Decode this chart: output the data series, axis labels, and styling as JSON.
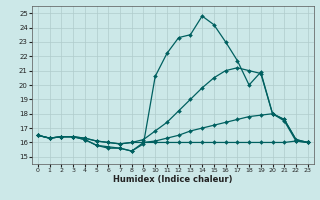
{
  "xlabel": "Humidex (Indice chaleur)",
  "background_color": "#cce8e8",
  "grid_color": "#b0cccc",
  "line_color": "#006060",
  "xlim": [
    -0.5,
    23.5
  ],
  "ylim": [
    14.5,
    25.5
  ],
  "yticks": [
    15,
    16,
    17,
    18,
    19,
    20,
    21,
    22,
    23,
    24,
    25
  ],
  "xticks": [
    0,
    1,
    2,
    3,
    4,
    5,
    6,
    7,
    8,
    9,
    10,
    11,
    12,
    13,
    14,
    15,
    16,
    17,
    18,
    19,
    20,
    21,
    22,
    23
  ],
  "series": [
    {
      "x": [
        0,
        1,
        2,
        3,
        4,
        5,
        6,
        7,
        8,
        9,
        10,
        11,
        12,
        13,
        14,
        15,
        16,
        17,
        18,
        19,
        20,
        21,
        22,
        23
      ],
      "y": [
        16.5,
        16.3,
        16.4,
        16.4,
        16.2,
        15.8,
        15.7,
        15.6,
        15.4,
        15.9,
        20.6,
        22.2,
        23.3,
        23.5,
        24.8,
        24.2,
        23.0,
        21.7,
        20.0,
        20.9,
        18.0,
        17.5,
        16.1,
        16.0
      ]
    },
    {
      "x": [
        0,
        1,
        2,
        3,
        4,
        5,
        6,
        7,
        8,
        9,
        10,
        11,
        12,
        13,
        14,
        15,
        16,
        17,
        18,
        19,
        20,
        21,
        22,
        23
      ],
      "y": [
        16.5,
        16.3,
        16.4,
        16.4,
        16.3,
        16.1,
        16.0,
        15.9,
        16.0,
        16.2,
        16.8,
        17.4,
        18.2,
        19.0,
        19.8,
        20.5,
        21.0,
        21.2,
        21.0,
        20.8,
        18.0,
        17.6,
        16.2,
        16.0
      ]
    },
    {
      "x": [
        0,
        1,
        2,
        3,
        4,
        5,
        6,
        7,
        8,
        9,
        10,
        11,
        12,
        13,
        14,
        15,
        16,
        17,
        18,
        19,
        20,
        21,
        22,
        23
      ],
      "y": [
        16.5,
        16.3,
        16.4,
        16.4,
        16.3,
        16.1,
        16.0,
        15.9,
        16.0,
        16.0,
        16.1,
        16.3,
        16.5,
        16.8,
        17.0,
        17.2,
        17.4,
        17.6,
        17.8,
        17.9,
        18.0,
        17.6,
        16.2,
        16.0
      ]
    },
    {
      "x": [
        0,
        1,
        2,
        3,
        4,
        5,
        6,
        7,
        8,
        9,
        10,
        11,
        12,
        13,
        14,
        15,
        16,
        17,
        18,
        19,
        20,
        21,
        22,
        23
      ],
      "y": [
        16.5,
        16.3,
        16.4,
        16.4,
        16.2,
        15.8,
        15.6,
        15.6,
        15.4,
        16.0,
        16.0,
        16.0,
        16.0,
        16.0,
        16.0,
        16.0,
        16.0,
        16.0,
        16.0,
        16.0,
        16.0,
        16.0,
        16.1,
        16.0
      ]
    }
  ]
}
